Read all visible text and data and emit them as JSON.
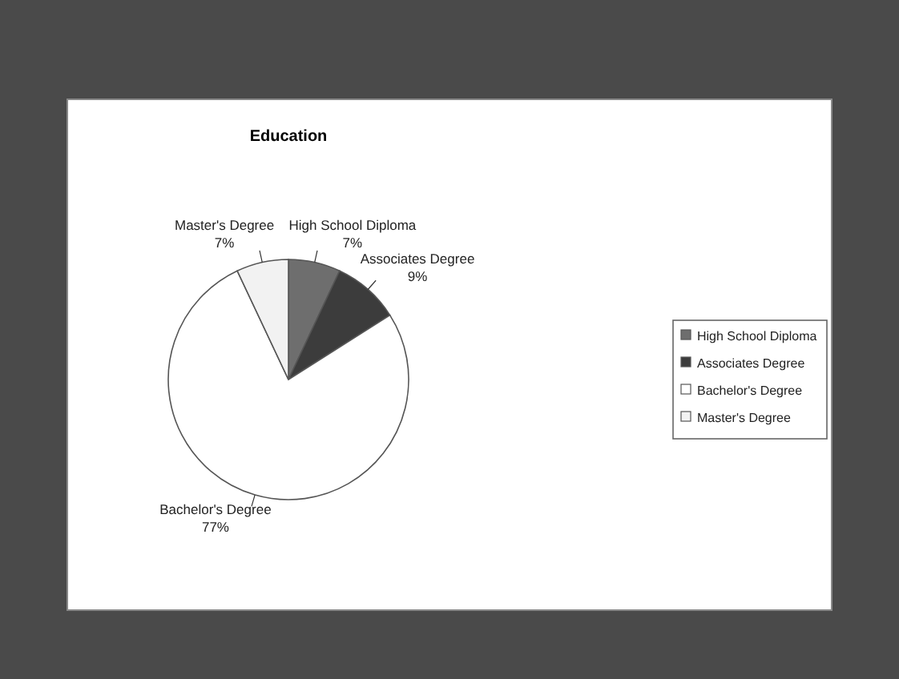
{
  "chart_data": {
    "type": "pie",
    "title": "Education",
    "categories": [
      "High School Diploma",
      "Associates Degree",
      "Bachelor's Degree",
      "Master's Degree"
    ],
    "values": [
      7,
      9,
      77,
      7
    ],
    "colors": [
      "#6e6e6e",
      "#3c3c3c",
      "#ffffff",
      "#f2f2f2"
    ],
    "value_labels": [
      "7%",
      "9%",
      "77%",
      "7%"
    ],
    "legend": "right"
  }
}
